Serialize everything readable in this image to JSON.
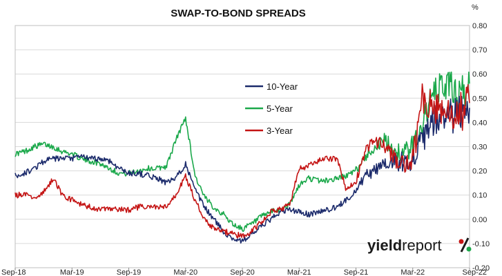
{
  "chart_data": {
    "type": "line",
    "title": "SWAP-TO-BOND SPREADS",
    "unit_label": "%",
    "xlabel": "",
    "ylabel": "",
    "y_axis_side": "right",
    "ylim": [
      -0.2,
      0.8
    ],
    "y_ticks": [
      0.8,
      0.7,
      0.6,
      0.5,
      0.4,
      0.3,
      0.2,
      0.1,
      0.0,
      -0.1,
      -0.2
    ],
    "y_tick_labels": [
      "0.80",
      "0.70",
      "0.60",
      "0.50",
      "0.40",
      "0.30",
      "0.20",
      "0.10",
      "0.00",
      "-0.10",
      "-0.20"
    ],
    "x_tick_labels": [
      "Sep-18",
      "Mar-19",
      "Sep-19",
      "Mar-20",
      "Sep-20",
      "Mar-21",
      "Sep-21",
      "Mar-22",
      "Sep-22"
    ],
    "x_ticks": [
      "2018-09",
      "2019-03",
      "2019-09",
      "2020-03",
      "2020-09",
      "2021-03",
      "2021-09",
      "2022-03",
      "2022-09"
    ],
    "xlim": [
      "2018-09",
      "2022-09"
    ],
    "grid": {
      "horizontal": true,
      "vertical": false
    },
    "legend_position": "center-right",
    "series": [
      {
        "name": "10-Year",
        "color": "#1b2a6b",
        "x": [
          "2018-09",
          "2018-10",
          "2018-11",
          "2018-12",
          "2019-01",
          "2019-02",
          "2019-03",
          "2019-04",
          "2019-05",
          "2019-06",
          "2019-07",
          "2019-08",
          "2019-09",
          "2019-10",
          "2019-11",
          "2019-12",
          "2020-01",
          "2020-02",
          "2020-03",
          "2020-04",
          "2020-05",
          "2020-06",
          "2020-07",
          "2020-08",
          "2020-09",
          "2020-10",
          "2020-11",
          "2020-12",
          "2021-01",
          "2021-02",
          "2021-03",
          "2021-04",
          "2021-05",
          "2021-06",
          "2021-07",
          "2021-08",
          "2021-09",
          "2021-10",
          "2021-11",
          "2021-12",
          "2022-01",
          "2022-02",
          "2022-03",
          "2022-04",
          "2022-05",
          "2022-06",
          "2022-07",
          "2022-08",
          "2022-09"
        ],
        "values": [
          0.18,
          0.19,
          0.21,
          0.24,
          0.25,
          0.25,
          0.25,
          0.26,
          0.25,
          0.25,
          0.24,
          0.21,
          0.19,
          0.19,
          0.18,
          0.17,
          0.15,
          0.17,
          0.23,
          0.12,
          0.05,
          0.0,
          -0.05,
          -0.08,
          -0.09,
          -0.06,
          -0.03,
          0.0,
          0.03,
          0.04,
          0.03,
          0.02,
          0.03,
          0.04,
          0.05,
          0.08,
          0.12,
          0.18,
          0.2,
          0.24,
          0.24,
          0.24,
          0.25,
          0.32,
          0.4,
          0.42,
          0.42,
          0.44,
          0.46
        ]
      },
      {
        "name": "5-Year",
        "color": "#1aa84a",
        "x": [
          "2018-09",
          "2018-10",
          "2018-11",
          "2018-12",
          "2019-01",
          "2019-02",
          "2019-03",
          "2019-04",
          "2019-05",
          "2019-06",
          "2019-07",
          "2019-08",
          "2019-09",
          "2019-10",
          "2019-11",
          "2019-12",
          "2020-01",
          "2020-02",
          "2020-03",
          "2020-04",
          "2020-05",
          "2020-06",
          "2020-07",
          "2020-08",
          "2020-09",
          "2020-10",
          "2020-11",
          "2020-12",
          "2021-01",
          "2021-02",
          "2021-03",
          "2021-04",
          "2021-05",
          "2021-06",
          "2021-07",
          "2021-08",
          "2021-09",
          "2021-10",
          "2021-11",
          "2021-12",
          "2022-01",
          "2022-02",
          "2022-03",
          "2022-04",
          "2022-05",
          "2022-06",
          "2022-07",
          "2022-08",
          "2022-09"
        ],
        "values": [
          0.27,
          0.28,
          0.3,
          0.31,
          0.3,
          0.28,
          0.27,
          0.25,
          0.24,
          0.23,
          0.21,
          0.19,
          0.19,
          0.2,
          0.21,
          0.21,
          0.22,
          0.33,
          0.42,
          0.18,
          0.09,
          0.05,
          0.02,
          -0.02,
          -0.04,
          -0.02,
          0.01,
          0.03,
          0.04,
          0.06,
          0.14,
          0.17,
          0.16,
          0.16,
          0.17,
          0.18,
          0.2,
          0.26,
          0.3,
          0.32,
          0.29,
          0.27,
          0.3,
          0.4,
          0.5,
          0.55,
          0.55,
          0.5,
          0.56
        ]
      },
      {
        "name": "3-Year",
        "color": "#c41414",
        "x": [
          "2018-09",
          "2018-10",
          "2018-11",
          "2018-12",
          "2019-01",
          "2019-02",
          "2019-03",
          "2019-04",
          "2019-05",
          "2019-06",
          "2019-07",
          "2019-08",
          "2019-09",
          "2019-10",
          "2019-11",
          "2019-12",
          "2020-01",
          "2020-02",
          "2020-03",
          "2020-04",
          "2020-05",
          "2020-06",
          "2020-07",
          "2020-08",
          "2020-09",
          "2020-10",
          "2020-11",
          "2020-12",
          "2021-01",
          "2021-02",
          "2021-03",
          "2021-04",
          "2021-05",
          "2021-06",
          "2021-07",
          "2021-08",
          "2021-09",
          "2021-10",
          "2021-11",
          "2021-12",
          "2022-01",
          "2022-02",
          "2022-03",
          "2022-04",
          "2022-05",
          "2022-06",
          "2022-07",
          "2022-08",
          "2022-09"
        ],
        "values": [
          0.1,
          0.1,
          0.09,
          0.11,
          0.17,
          0.1,
          0.08,
          0.06,
          0.05,
          0.04,
          0.04,
          0.04,
          0.04,
          0.05,
          0.05,
          0.05,
          0.05,
          0.1,
          0.18,
          0.08,
          0.0,
          -0.04,
          -0.05,
          -0.06,
          -0.07,
          -0.05,
          -0.01,
          0.03,
          0.04,
          0.06,
          0.21,
          0.22,
          0.24,
          0.25,
          0.25,
          0.12,
          0.16,
          0.28,
          0.33,
          0.3,
          0.25,
          0.22,
          0.24,
          0.5,
          0.47,
          0.45,
          0.42,
          0.44,
          0.48
        ]
      }
    ]
  },
  "brand": {
    "name": "yieldreport",
    "name_part1": "yield",
    "name_part2": "report",
    "symbol": "%",
    "symbol_color_top": "#c41414",
    "symbol_color_bottom": "#1aa84a"
  }
}
